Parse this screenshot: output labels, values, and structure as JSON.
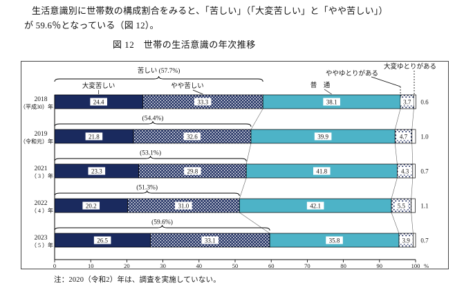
{
  "document": {
    "intro_line1": "生活意識別に世帯数の構成割合をみると、「苦しい」（「大変苦しい」と「やや苦しい」）",
    "intro_line2": "が 59.6％となっている（図 12）。",
    "figure_title": "図 12　世帯の生活意識の年次推移",
    "footnote": "注：2020（令和2）年は、調査を実施していない。"
  },
  "chart_data": {
    "type": "bar",
    "orientation": "horizontal",
    "stacked": true,
    "title": "図 12　世帯の生活意識の年次推移",
    "x_axis": {
      "min": 0,
      "max": 100,
      "ticks": [
        0,
        10,
        20,
        30,
        40,
        50,
        60,
        70,
        80,
        90,
        100
      ],
      "unit_label": "%"
    },
    "series": [
      {
        "name": "大変苦しい",
        "style": "solid-navy"
      },
      {
        "name": "やや苦しい",
        "style": "navy-white-dots"
      },
      {
        "name": "普　通",
        "style": "solid-teal"
      },
      {
        "name": "ややゆとりがある",
        "style": "white-navy-dots"
      },
      {
        "name": "大変ゆとりがある",
        "style": "plain-white"
      }
    ],
    "rows": [
      {
        "year": "2018",
        "era": "（平成30）年",
        "values": [
          24.4,
          33.3,
          38.1,
          3.7,
          0.6
        ],
        "kurushii_label": "苦しい (57.7%)"
      },
      {
        "year": "2019",
        "era": "（令和元）年",
        "values": [
          21.8,
          32.6,
          39.9,
          4.7,
          1.0
        ],
        "kurushii_label": "(54.4%)"
      },
      {
        "year": "2021",
        "era": "（ 3 ）年",
        "values": [
          23.3,
          29.8,
          41.8,
          4.3,
          0.7
        ],
        "kurushii_label": "(53.1%)"
      },
      {
        "year": "2022",
        "era": "（ 4 ）年",
        "values": [
          20.2,
          31.0,
          42.1,
          5.5,
          1.1
        ],
        "kurushii_label": "(51.3%)"
      },
      {
        "year": "2023",
        "era": "（ 5 ）年",
        "values": [
          26.5,
          33.1,
          35.8,
          3.9,
          0.7
        ],
        "kurushii_label": "(59.6%)"
      }
    ],
    "colors": {
      "navy": "#1a2a5e",
      "teal": "#4db3c7",
      "ink": "#111111"
    }
  }
}
